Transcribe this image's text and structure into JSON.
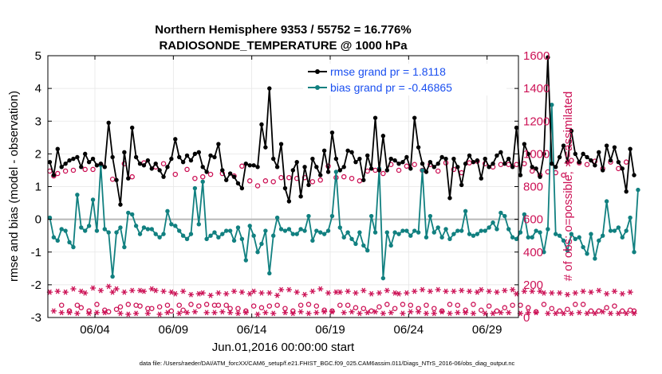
{
  "chart_data": {
    "type": "line",
    "title_line1": "Northern Hemisphere 9353 / 55752 = 16.776%",
    "title_line2": "RADIOSONDE_TEMPERATURE @ 1000 hPa",
    "xlabel": "Jun.01,2016 00:00:00 start",
    "ylabel_left": "rmse and bias (model - observation)",
    "ylabel_right": "# of obs: o=possible; ∗=assimilated",
    "footnote": "data file: /Users/raeder/DAI/ATM_forcXX/CAM6_setup/f.e21.FHIST_BGC.f09_025.CAM6assim.011/Diags_NTrS_2016-06/obs_diag_output.nc",
    "ylim_left": [
      -3,
      5
    ],
    "ylim_right": [
      0,
      1600
    ],
    "left_ticks": [
      "5",
      "4",
      "3",
      "2",
      "1",
      "0",
      "-1",
      "-2",
      "-3"
    ],
    "right_ticks": [
      "1600",
      "1400",
      "1200",
      "1000",
      "800",
      "600",
      "400",
      "200",
      "0"
    ],
    "x_tick_labels": [
      "06/04",
      "06/09",
      "06/14",
      "06/19",
      "06/24",
      "06/29"
    ],
    "x_tick_days": [
      4,
      9,
      14,
      19,
      24,
      29
    ],
    "x_range_days": [
      1,
      31
    ],
    "points_per_day": 4,
    "legend": {
      "rmse": "rmse grand pr = 1.8118",
      "bias": "bias grand pr = -0.46865"
    },
    "colors": {
      "rmse": "#000000",
      "bias": "#118080",
      "obs": "#cc1155",
      "legend_text": "#1a4ff0",
      "zero_line": "#b8b8b8"
    },
    "series": [
      {
        "name": "rmse",
        "axis": "left",
        "values": [
          1.75,
          1.35,
          2.15,
          1.6,
          1.7,
          1.8,
          1.85,
          1.9,
          1.6,
          2.0,
          1.75,
          1.85,
          1.65,
          1.7,
          1.6,
          2.95,
          1.9,
          1.2,
          0.45,
          2.05,
          1.25,
          2.8,
          1.9,
          1.7,
          1.65,
          1.8,
          1.55,
          1.7,
          1.5,
          1.3,
          1.6,
          1.85,
          2.45,
          1.9,
          1.75,
          1.95,
          1.8,
          2.0,
          2.05,
          1.6,
          1.45,
          1.95,
          1.9,
          2.3,
          1.5,
          1.2,
          1.4,
          1.3,
          1.1,
          0.95,
          1.7,
          1.65,
          1.65,
          1.6,
          2.9,
          2.2,
          4.0,
          1.85,
          1.6,
          2.3,
          0.95,
          0.55,
          1.5,
          1.75,
          0.7,
          1.6,
          1.05,
          1.85,
          1.6,
          1.35,
          2.1,
          1.45,
          2.65,
          1.85,
          1.5,
          1.6,
          2.1,
          2.05,
          1.75,
          1.85,
          1.2,
          1.95,
          1.55,
          3.1,
          1.5,
          2.55,
          1.5,
          1.85,
          1.8,
          1.7,
          1.75,
          1.9,
          1.55,
          3.1,
          2.2,
          1.7,
          1.45,
          1.75,
          1.6,
          1.7,
          1.9,
          1.85,
          0.65,
          1.85,
          1.6,
          1.05,
          1.7,
          1.95,
          1.75,
          1.8,
          1.25,
          1.85,
          1.6,
          1.7,
          1.95,
          2.05,
          1.7,
          1.85,
          1.6,
          2.8,
          1.35,
          2.3,
          2.0,
          1.6,
          1.55,
          1.3,
          2.0,
          4.95,
          1.7,
          1.6,
          1.9,
          2.25,
          1.75,
          2.7,
          2.0,
          1.75,
          2.0,
          1.9,
          1.8,
          1.65,
          2.05,
          1.5,
          2.25,
          1.8,
          2.2,
          1.75,
          1.55,
          0.85,
          2.15,
          1.35
        ]
      },
      {
        "name": "bias",
        "axis": "left",
        "values": [
          0.05,
          -0.55,
          -0.65,
          -0.3,
          -0.35,
          -0.7,
          -0.85,
          0.75,
          -0.25,
          -0.35,
          -0.2,
          0.6,
          -0.35,
          1.65,
          -0.3,
          -0.4,
          -1.75,
          -0.4,
          -0.25,
          -0.85,
          0.2,
          0.15,
          -0.2,
          -0.45,
          -0.25,
          -0.3,
          -0.3,
          -0.45,
          -0.55,
          -0.45,
          0.25,
          -0.15,
          -0.2,
          -0.35,
          -0.5,
          -0.6,
          -0.45,
          0.95,
          -0.15,
          1.15,
          -0.6,
          -0.5,
          -0.4,
          -0.55,
          -0.45,
          -0.35,
          -0.35,
          -0.65,
          -0.25,
          -0.6,
          -1.25,
          -0.2,
          -0.5,
          -1.0,
          -0.75,
          -0.35,
          -1.65,
          -0.5,
          0.05,
          -0.3,
          -0.35,
          -0.3,
          -0.45,
          -0.45,
          -0.3,
          -0.35,
          0.1,
          -0.65,
          -0.35,
          -0.4,
          -0.45,
          -0.35,
          0.1,
          1.45,
          -0.25,
          -0.55,
          -0.4,
          -0.6,
          -0.75,
          -0.4,
          -0.8,
          -0.95,
          0.1,
          -0.4,
          1.55,
          -1.8,
          -0.4,
          -0.8,
          -0.4,
          -0.45,
          -0.35,
          -0.35,
          -0.5,
          -0.35,
          -0.4,
          1.5,
          -0.55,
          0.1,
          -0.4,
          -0.25,
          -0.55,
          -0.3,
          -0.6,
          -0.45,
          -0.35,
          -0.35,
          0.25,
          -0.45,
          -0.5,
          -0.45,
          -0.35,
          -0.35,
          -0.25,
          -0.1,
          -0.3,
          0.2,
          0.1,
          -0.3,
          -0.55,
          -0.6,
          -0.4,
          0.15,
          -0.55,
          -0.55,
          -0.35,
          -0.4,
          -1.0,
          -0.3,
          3.5,
          -0.45,
          -0.5,
          -0.65,
          -0.95,
          -0.45,
          -0.6,
          -0.55,
          -0.85,
          -1.05,
          -0.45,
          -1.2,
          -0.65,
          -0.5,
          0.55,
          -0.35,
          -0.35,
          -0.25,
          -0.55,
          -0.35,
          0.05,
          -1.0,
          0.9
        ]
      },
      {
        "name": "obs_possible",
        "axis": "right",
        "marker": "circle",
        "values": [
          895,
          865,
          880,
          75,
          895,
          40,
          900,
          75,
          60,
          905,
          40,
          905,
          80,
          935,
          45,
          35,
          845,
          50,
          65,
          940,
          80,
          860,
          75,
          70,
          945,
          55,
          55,
          920,
          65,
          940,
          75,
          40,
          875,
          75,
          45,
          905,
          80,
          850,
          70,
          860,
          80,
          875,
          75,
          75,
          880,
          75,
          55,
          865,
          55,
          925,
          40,
          835,
          70,
          805,
          60,
          835,
          70,
          830,
          75,
          855,
          55,
          855,
          40,
          850,
          75,
          855,
          80,
          830,
          70,
          840,
          45,
          925,
          40,
          855,
          75,
          860,
          75,
          850,
          60,
          835,
          55,
          895,
          40,
          900,
          65,
          880,
          80,
          935,
          55,
          900,
          80,
          925,
          75,
          935,
          55,
          900,
          75,
          935,
          55,
          895,
          40,
          945,
          80,
          905,
          75,
          885,
          45,
          945,
          80,
          955,
          45,
          940,
          70,
          920,
          40,
          935,
          60,
          935,
          75,
          935,
          75,
          940,
          60,
          895,
          35,
          870,
          80,
          890,
          55,
          885,
          40,
          870,
          50,
          960,
          80,
          945,
          80,
          935,
          40,
          955,
          40,
          910,
          60,
          950,
          70,
          910,
          40,
          950,
          45,
          40
        ]
      },
      {
        "name": "obs_assimilated",
        "axis": "right",
        "marker": "star",
        "values": [
          155,
          40,
          160,
          30,
          155,
          30,
          175,
          25,
          160,
          150,
          25,
          180,
          30,
          165,
          30,
          190,
          155,
          175,
          25,
          155,
          20,
          165,
          25,
          165,
          160,
          25,
          175,
          165,
          20,
          160,
          30,
          155,
          145,
          25,
          160,
          30,
          140,
          35,
          145,
          150,
          30,
          135,
          30,
          150,
          35,
          145,
          30,
          160,
          25,
          155,
          30,
          145,
          160,
          20,
          150,
          30,
          150,
          25,
          135,
          170,
          30,
          170,
          25,
          155,
          35,
          140,
          25,
          160,
          30,
          175,
          35,
          150,
          35,
          155,
          155,
          30,
          160,
          35,
          150,
          25,
          165,
          30,
          145,
          35,
          150,
          25,
          165,
          30,
          150,
          145,
          25,
          150,
          35,
          160,
          35,
          170,
          25,
          160,
          25,
          170,
          35,
          160,
          25,
          160,
          30,
          165,
          30,
          160,
          25,
          155,
          170,
          25,
          160,
          25,
          155,
          30,
          165,
          30,
          170,
          145,
          25,
          160,
          30,
          160,
          30,
          160,
          150,
          25,
          150,
          25,
          150,
          25,
          140,
          25,
          150,
          30,
          160,
          25,
          155,
          25,
          165,
          35,
          145,
          25,
          160,
          25,
          145,
          25,
          155,
          25
        ]
      }
    ]
  }
}
